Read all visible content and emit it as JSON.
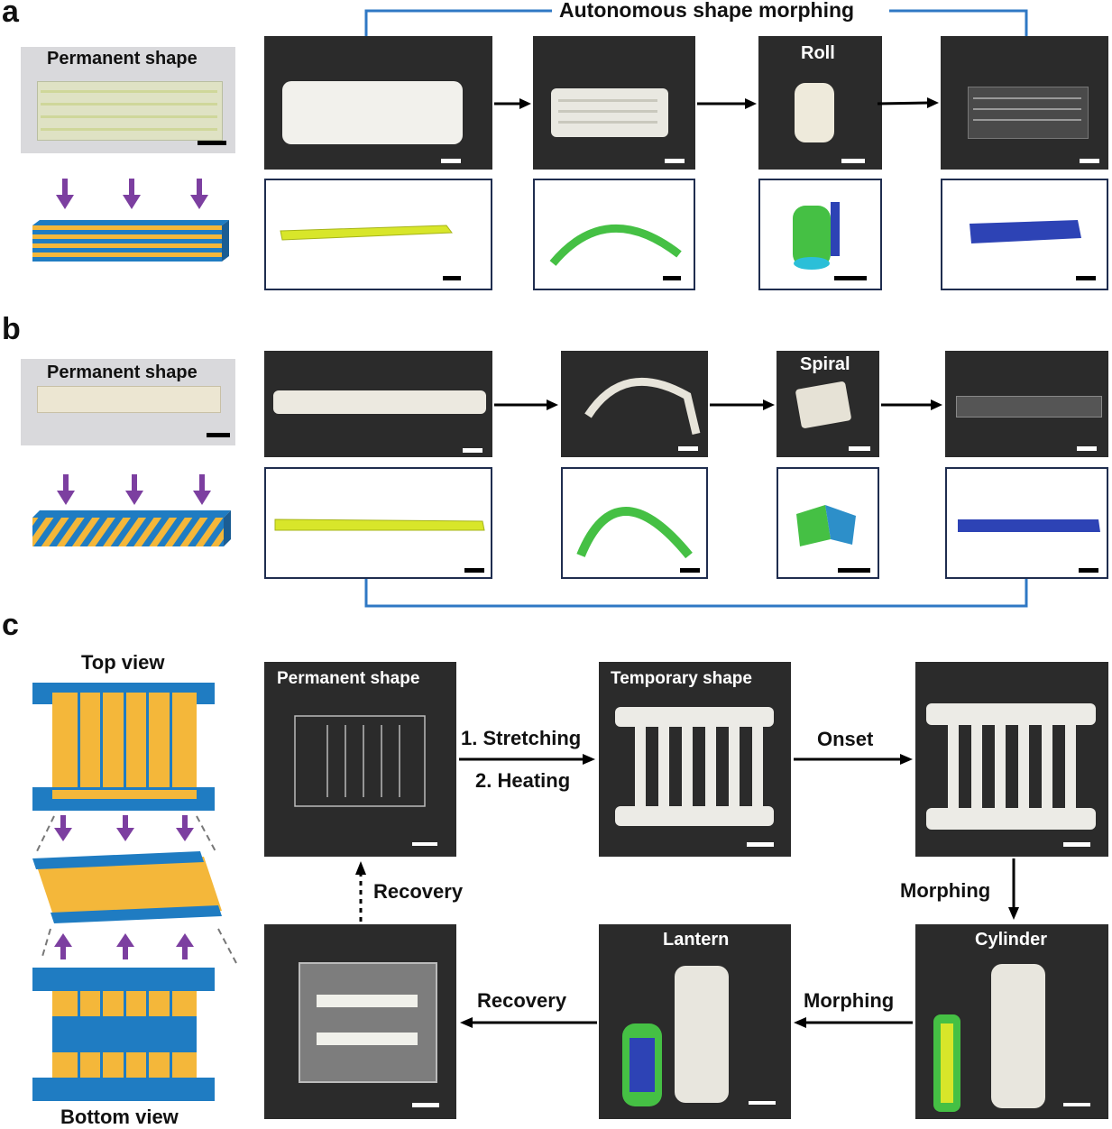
{
  "panels": {
    "a": "a",
    "b": "b",
    "c": "c"
  },
  "row_a": {
    "header": "Autonomous shape morphing",
    "permanent_label": "Permanent shape",
    "roll_label": "Roll"
  },
  "row_b": {
    "permanent_label": "Permanent shape",
    "spiral_label": "Spiral"
  },
  "row_c": {
    "top_view": "Top view",
    "bottom_view": "Bottom view",
    "permanent_label": "Permanent shape",
    "temporary_label": "Temporary shape",
    "stretching": "1. Stretching",
    "heating": "2. Heating",
    "onset": "Onset",
    "morphing_down": "Morphing",
    "cylinder": "Cylinder",
    "morphing_left": "Morphing",
    "lantern": "Lantern",
    "recovery_left": "Recovery",
    "recovery_up": "Recovery"
  },
  "colors": {
    "bracket": "#2f78c4",
    "sim_border": "#1f2d4f",
    "stripe_yellow": "#f4b73a",
    "stripe_blue": "#1f7cc2",
    "arrow_purple": "#7c3fa0",
    "sim_yellow": "#d8e62a",
    "sim_green": "#45c044",
    "sim_blue": "#2d43b5"
  }
}
